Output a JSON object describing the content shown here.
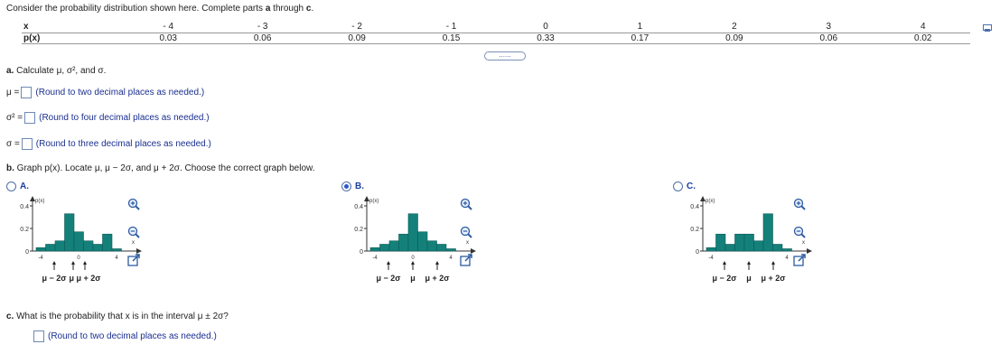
{
  "intro": {
    "prefix": "Consider the probability distribution shown here. Complete parts ",
    "a": "a",
    "through": " through ",
    "c": "c",
    "suffix": "."
  },
  "table": {
    "x_label": "x",
    "p_label": "p(x)",
    "x_values": [
      "- 4",
      "- 3",
      "- 2",
      "- 1",
      "0",
      "1",
      "2",
      "3",
      "4"
    ],
    "p_values": [
      "0.03",
      "0.06",
      "0.09",
      "0.15",
      "0.33",
      "0.17",
      "0.09",
      "0.06",
      "0.02"
    ]
  },
  "expander_text": "......",
  "part_a": {
    "letter": "a.",
    "text": " Calculate μ, σ², and σ.",
    "mu_label": "μ =",
    "mu_hint": "(Round to two decimal places as needed.)",
    "var_label": "σ² =",
    "var_hint": "(Round to four decimal places as needed.)",
    "sigma_label": "σ =",
    "sigma_hint": "(Round to three decimal places as needed.)"
  },
  "part_b": {
    "letter": "b.",
    "text": " Graph p(x). Locate μ, μ − 2σ, and μ + 2σ. Choose the correct graph below."
  },
  "options": [
    {
      "letter": "A.",
      "selected": false
    },
    {
      "letter": "B.",
      "selected": true
    },
    {
      "letter": "C.",
      "selected": false
    }
  ],
  "graph_labels": {
    "y_axis": "p(x)",
    "x_axis": "x",
    "y_tick_top": "0.4",
    "y_tick_mid": "0.2",
    "y_tick_zero": "0"
  },
  "graph_a": {
    "xticks": [
      "-4",
      "0",
      "4"
    ],
    "markers": [
      "μ − 2σ",
      "μ μ + 2σ"
    ],
    "bars": [
      0.03,
      0.06,
      0.09,
      0.33,
      0.17,
      0.09,
      0.06,
      0.15,
      0.02
    ]
  },
  "graph_b": {
    "xticks": [
      "-4",
      "0",
      "4"
    ],
    "markers": [
      "μ − 2σ",
      "μ",
      "μ + 2σ"
    ],
    "bars": [
      0.03,
      0.06,
      0.09,
      0.15,
      0.33,
      0.17,
      0.09,
      0.06,
      0.02
    ]
  },
  "graph_c": {
    "xticks": [
      "-4",
      "4"
    ],
    "markers": [
      "μ − 2σ",
      "μ",
      "μ + 2σ"
    ],
    "bars": [
      0.03,
      0.15,
      0.06,
      0.15,
      0.15,
      0.09,
      0.33,
      0.06,
      0.02
    ]
  },
  "part_c": {
    "letter": "c.",
    "text": " What is the probability that x is in the interval μ ± 2σ?",
    "hint": "(Round to two decimal places as needed.)"
  },
  "colors": {
    "bar_fill": "#14807a",
    "bar_stroke": "#0e5b57",
    "hint_text": "#1a2f8f",
    "accent": "#2a58c9"
  },
  "icons": [
    "zoom-in-icon",
    "zoom-out-icon",
    "popout-icon",
    "copy-icon"
  ]
}
